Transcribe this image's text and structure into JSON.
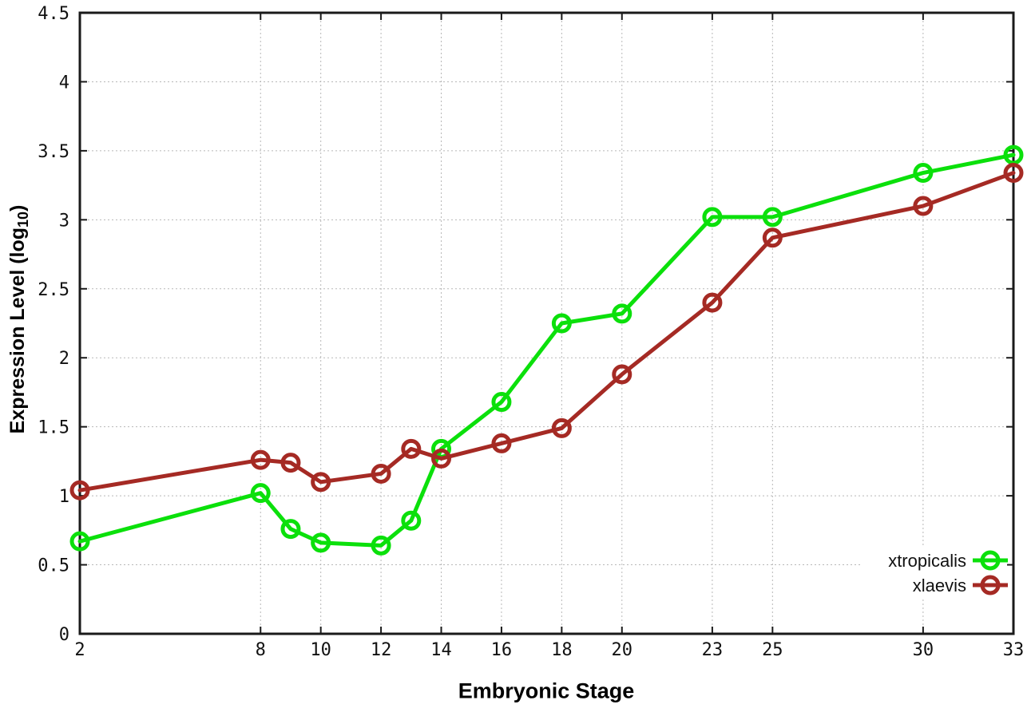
{
  "figure": {
    "background": "#ffffff",
    "xlabel": "Embryonic Stage",
    "ylabel_prefix": "Expression Level (log",
    "ylabel_sub": "10",
    "ylabel_suffix": ")"
  },
  "chart_data": {
    "type": "line",
    "title": "",
    "xlabel": "Embryonic Stage",
    "ylabel": "Expression Level (log10)",
    "x": [
      2,
      8,
      9,
      10,
      12,
      13,
      14,
      16,
      18,
      20,
      23,
      25,
      30,
      33
    ],
    "series": [
      {
        "name": "xtropicalis",
        "color": "#0be00b",
        "values": [
          0.67,
          1.02,
          0.76,
          0.66,
          0.64,
          0.82,
          1.34,
          1.68,
          2.25,
          2.32,
          3.02,
          3.02,
          3.34,
          3.47
        ]
      },
      {
        "name": "xlaevis",
        "color": "#a52a24",
        "values": [
          1.04,
          1.26,
          1.24,
          1.1,
          1.16,
          1.34,
          1.27,
          1.38,
          1.49,
          1.88,
          2.4,
          2.87,
          3.1,
          3.34
        ]
      }
    ],
    "xticks": [
      2,
      8,
      10,
      12,
      14,
      16,
      18,
      20,
      23,
      25,
      30,
      33
    ],
    "yticks": [
      0,
      0.5,
      1,
      1.5,
      2,
      2.5,
      3,
      3.5,
      4,
      4.5
    ],
    "xlim": [
      2,
      33
    ],
    "ylim": [
      0,
      4.5
    ],
    "grid": true,
    "grid_color": "#b8b8b8",
    "border_color": "#1a1a1a",
    "legend_position": "inside-right-bottom",
    "marker": "open-circle"
  }
}
